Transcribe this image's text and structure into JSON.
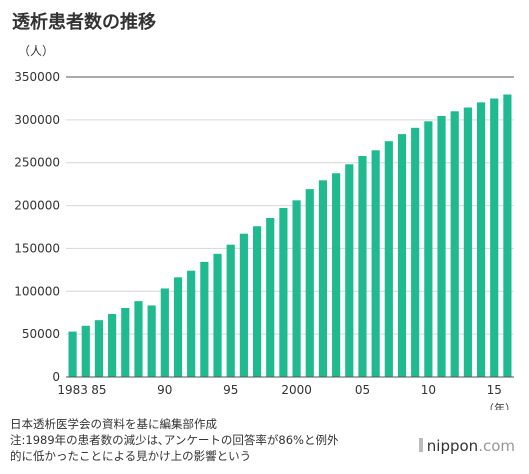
{
  "header": {
    "title": "透析患者数の推移"
  },
  "chart_data": {
    "type": "bar",
    "title": "透析患者数の推移",
    "ylabel": "（人）",
    "xlabel": "（年）",
    "ylim": [
      0,
      350000
    ],
    "yticks": [
      0,
      50000,
      100000,
      150000,
      200000,
      250000,
      300000,
      350000
    ],
    "ytick_labels": [
      "0",
      "50000",
      "100000",
      "150000",
      "200000",
      "250000",
      "300000",
      "350000"
    ],
    "xtick_labels": [
      {
        "year": 1983,
        "label": "1983"
      },
      {
        "year": 1985,
        "label": "85"
      },
      {
        "year": 1990,
        "label": "90"
      },
      {
        "year": 1995,
        "label": "95"
      },
      {
        "year": 2000,
        "label": "2000"
      },
      {
        "year": 2005,
        "label": "05"
      },
      {
        "year": 2010,
        "label": "10"
      },
      {
        "year": 2015,
        "label": "15"
      }
    ],
    "x": [
      1983,
      1984,
      1985,
      1986,
      1987,
      1988,
      1989,
      1990,
      1991,
      1992,
      1993,
      1994,
      1995,
      1996,
      1997,
      1998,
      1999,
      2000,
      2001,
      2002,
      2003,
      2004,
      2005,
      2006,
      2007,
      2008,
      2009,
      2010,
      2011,
      2012,
      2013,
      2014,
      2015,
      2016
    ],
    "values": [
      53000,
      59800,
      66300,
      73500,
      80500,
      88500,
      83500,
      103300,
      116300,
      124000,
      134300,
      143700,
      154400,
      167200,
      175900,
      185500,
      197200,
      206100,
      219200,
      229500,
      237700,
      248200,
      257800,
      264500,
      275100,
      283400,
      290700,
      298300,
      304600,
      310000,
      314400,
      320400,
      324900,
      329600
    ],
    "bar_color": "#1fba90",
    "grid": true
  },
  "notes": {
    "source": "日本透析医学会の資料を基に編集部作成",
    "note_line1": "注:1989年の患者数の減少は､アンケートの回答率が86%と例外",
    "note_line2": "的に低かったことによる見かけ上の影響という"
  },
  "brand": {
    "name": "nippon",
    "suffix": ".com"
  }
}
